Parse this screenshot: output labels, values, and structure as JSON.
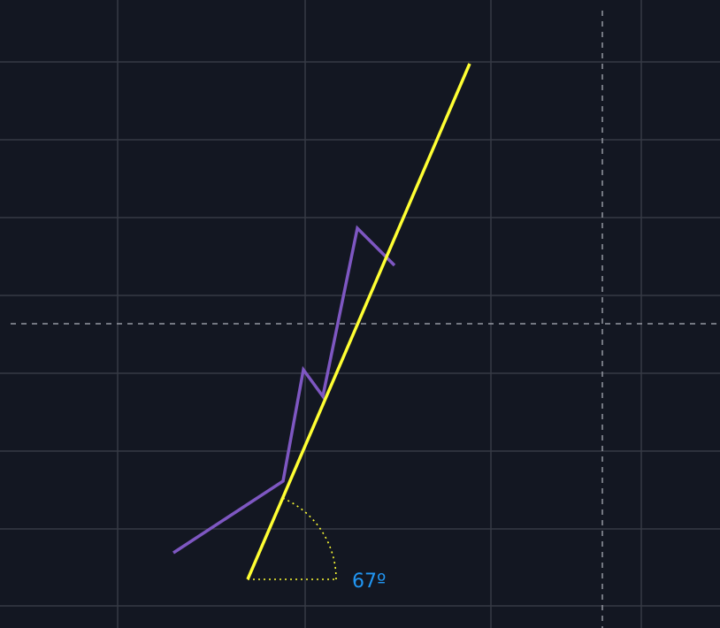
{
  "chart_data": {
    "type": "line",
    "title": "",
    "grid": true,
    "crosshair": true,
    "series": [
      {
        "color": "#7e57c2",
        "points": [
          [
            196,
            625
          ],
          [
            320,
            544
          ],
          [
            343,
            418
          ],
          [
            365,
            448
          ],
          [
            404,
            258
          ],
          [
            446,
            300
          ]
        ]
      }
    ],
    "trend_line": {
      "color": "#ffff33",
      "start": [
        280,
        655
      ],
      "end": [
        531,
        72
      ]
    },
    "angle_annotation": {
      "label": "67º",
      "degrees": 67,
      "color": "#ffff33",
      "label_color": "#2196f3"
    }
  }
}
